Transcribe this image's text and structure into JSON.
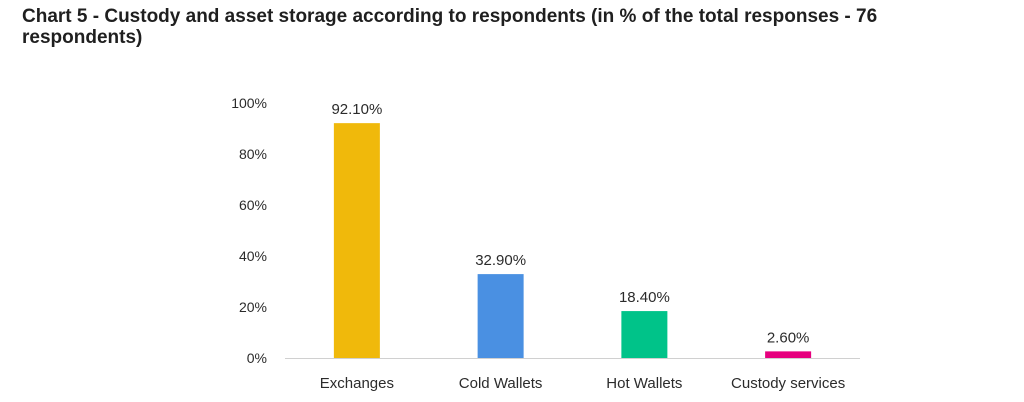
{
  "chart_data": {
    "type": "bar",
    "title": "Chart 5 - Custody and asset storage according to respondents (in % of the total responses - 76 respondents)",
    "xlabel": "",
    "ylabel": "",
    "ylim": [
      0,
      100
    ],
    "yticks": [
      "0%",
      "20%",
      "40%",
      "60%",
      "80%",
      "100%"
    ],
    "categories": [
      "Exchanges",
      "Cold Wallets",
      "Hot Wallets",
      "Custody services"
    ],
    "values": [
      92.1,
      32.9,
      18.4,
      2.6
    ],
    "data_labels": [
      "92.10%",
      "32.90%",
      "18.40%",
      "2.60%"
    ],
    "colors": [
      "#F0B90B",
      "#4A90E2",
      "#00C389",
      "#E6007E"
    ],
    "grid": false,
    "legend": "none"
  }
}
